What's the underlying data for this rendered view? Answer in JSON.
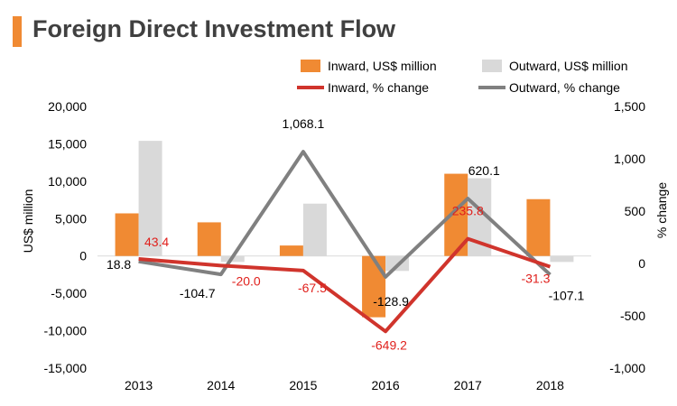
{
  "title": "Foreign Direct Investment Flow",
  "colors": {
    "inward_bar": "#f08a33",
    "outward_bar": "#d9d9d9",
    "inward_line": "#d0342c",
    "outward_line": "#808080",
    "inward_label": "#e0201c",
    "axis_text": "#000000",
    "title_accent": "#f08a33"
  },
  "chart_data": {
    "type": "bar",
    "categories": [
      "2013",
      "2014",
      "2015",
      "2016",
      "2017",
      "2018"
    ],
    "ylabel": "US$ million",
    "y2label": "% change",
    "ylim": [
      -15000,
      20000
    ],
    "y_ticks": [
      "20,000",
      "15,000",
      "10,000",
      "5,000",
      "0",
      "-5,000",
      "-10,000",
      "-15,000"
    ],
    "y_tick_values": [
      20000,
      15000,
      10000,
      5000,
      0,
      -5000,
      -10000,
      -15000
    ],
    "y2lim": [
      -1000,
      1500
    ],
    "y2_ticks": [
      "1,500",
      "1,000",
      "500",
      "0",
      "-500",
      "-1,000"
    ],
    "y2_tick_values": [
      1500,
      1000,
      500,
      0,
      -500,
      -1000
    ],
    "legend_position": "top-right",
    "series": [
      {
        "name": "Inward, US$ million",
        "kind": "bar",
        "axis": "left",
        "values": [
          5700,
          4500,
          1400,
          -8200,
          11000,
          7600
        ]
      },
      {
        "name": "Outward, US$ million",
        "kind": "bar",
        "axis": "left",
        "values": [
          15400,
          -800,
          7000,
          -2000,
          10400,
          -800
        ]
      },
      {
        "name": "Inward, % change",
        "kind": "line",
        "axis": "right",
        "values": [
          43.4,
          -20.0,
          -67.5,
          -649.2,
          235.8,
          -31.3
        ],
        "labels": [
          "43.4",
          "-20.0",
          "-67.5",
          "-649.2",
          "235.8",
          "-31.3"
        ]
      },
      {
        "name": "Outward, % change",
        "kind": "line",
        "axis": "right",
        "values": [
          18.8,
          -104.7,
          1068.1,
          -128.9,
          620.1,
          -107.1
        ],
        "labels": [
          "18.8",
          "-104.7",
          "1,068.1",
          "-128.9",
          "620.1",
          "-107.1"
        ]
      }
    ]
  }
}
